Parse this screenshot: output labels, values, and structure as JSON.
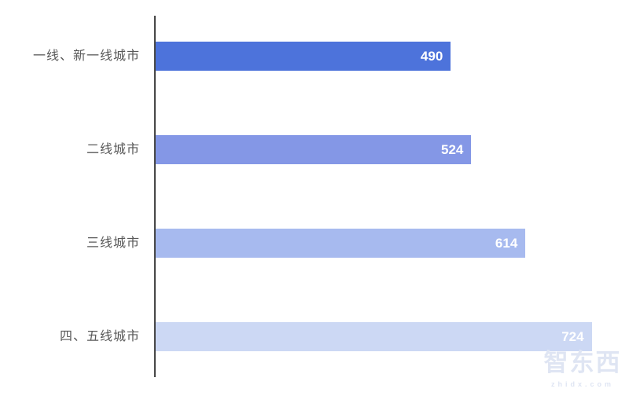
{
  "chart_data": {
    "type": "bar",
    "orientation": "horizontal",
    "title": "",
    "xlabel": "",
    "ylabel": "",
    "grid": false,
    "legend": null,
    "categories": [
      "一线、新一线城市",
      "二线城市",
      "三线城市",
      "四、五线城市"
    ],
    "values": [
      490,
      524,
      614,
      724
    ],
    "bar_colors": [
      "#4d73db",
      "#8497e6",
      "#a7baef",
      "#ccd8f4"
    ],
    "value_label_color": "#ffffff",
    "category_label_color": "#595959",
    "axis_color": "#474747",
    "background_color": "#ffffff"
  },
  "watermark": {
    "logo_text": "智东西",
    "url_text": "zhidx.com",
    "color": "#dfe5f3"
  }
}
